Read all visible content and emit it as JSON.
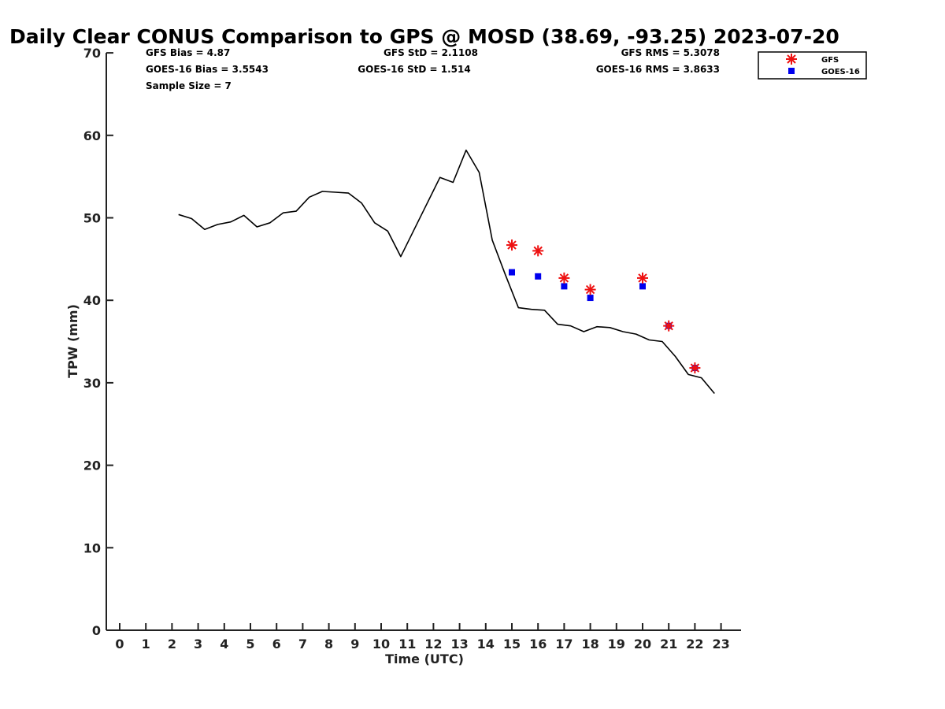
{
  "chart_data": {
    "type": "line",
    "title": "Daily Clear CONUS Comparison to GPS @ MOSD (38.69, -93.25) 2023-07-20",
    "xlabel": "Time (UTC)",
    "ylabel": "TPW (mm)",
    "xlim": [
      -0.5,
      23.8
    ],
    "ylim": [
      0,
      70
    ],
    "xticks": [
      0,
      1,
      2,
      3,
      4,
      5,
      6,
      7,
      8,
      9,
      10,
      11,
      12,
      13,
      14,
      15,
      16,
      17,
      18,
      19,
      20,
      21,
      22,
      23
    ],
    "yticks": [
      0,
      10,
      20,
      30,
      40,
      50,
      60,
      70
    ],
    "gps_series": {
      "name": "GPS",
      "color": "#000000",
      "x": [
        2.25,
        2.75,
        3.25,
        3.75,
        4.25,
        4.75,
        5.25,
        5.75,
        6.25,
        6.75,
        7.25,
        7.75,
        8.25,
        8.75,
        9.25,
        9.75,
        10.25,
        10.75,
        11.25,
        11.75,
        12.25,
        12.75,
        13.25,
        13.75,
        14.25,
        14.75,
        15.25,
        15.75,
        16.25,
        16.75,
        17.25,
        17.75,
        18.25,
        18.75,
        19.25,
        19.75,
        20.25,
        20.75,
        21.25,
        21.75,
        22.25,
        22.75
      ],
      "y": [
        50.4,
        49.9,
        48.6,
        49.2,
        49.5,
        50.3,
        48.9,
        49.4,
        50.6,
        50.8,
        52.5,
        53.2,
        53.1,
        53.0,
        51.8,
        49.4,
        48.4,
        45.3,
        48.5,
        51.7,
        54.9,
        54.3,
        58.2,
        55.5,
        47.3,
        43.1,
        39.1,
        38.9,
        38.8,
        37.1,
        36.9,
        36.2,
        36.8,
        36.7,
        36.2,
        35.9,
        35.2,
        35.0,
        33.2,
        31.0,
        30.6,
        28.7
      ]
    },
    "series": [
      {
        "name": "GFS",
        "marker": "asterisk",
        "color": "#ee1111",
        "x": [
          15,
          16,
          17,
          18,
          20,
          21,
          22
        ],
        "y": [
          46.7,
          46.0,
          42.7,
          41.3,
          42.7,
          36.9,
          31.8
        ]
      },
      {
        "name": "GOES-16",
        "marker": "square",
        "color": "#0000ee",
        "x": [
          15,
          16,
          17,
          18,
          20,
          21,
          22
        ],
        "y": [
          43.4,
          42.9,
          41.7,
          40.3,
          41.7,
          36.9,
          31.8
        ]
      }
    ],
    "stats": {
      "gfs_bias": "GFS Bias = 4.87",
      "goes_bias": "GOES-16 Bias = 3.5543",
      "sample_size": "Sample Size = 7",
      "gfs_std": "GFS StD = 2.1108",
      "goes_std": "GOES-16 StD = 1.514",
      "gfs_rms": "GFS RMS = 5.3078",
      "goes_rms": "GOES-16 RMS = 3.8633"
    },
    "legend": {
      "placement": "top-right outside",
      "entries": [
        "GFS",
        "GOES-16"
      ]
    }
  }
}
